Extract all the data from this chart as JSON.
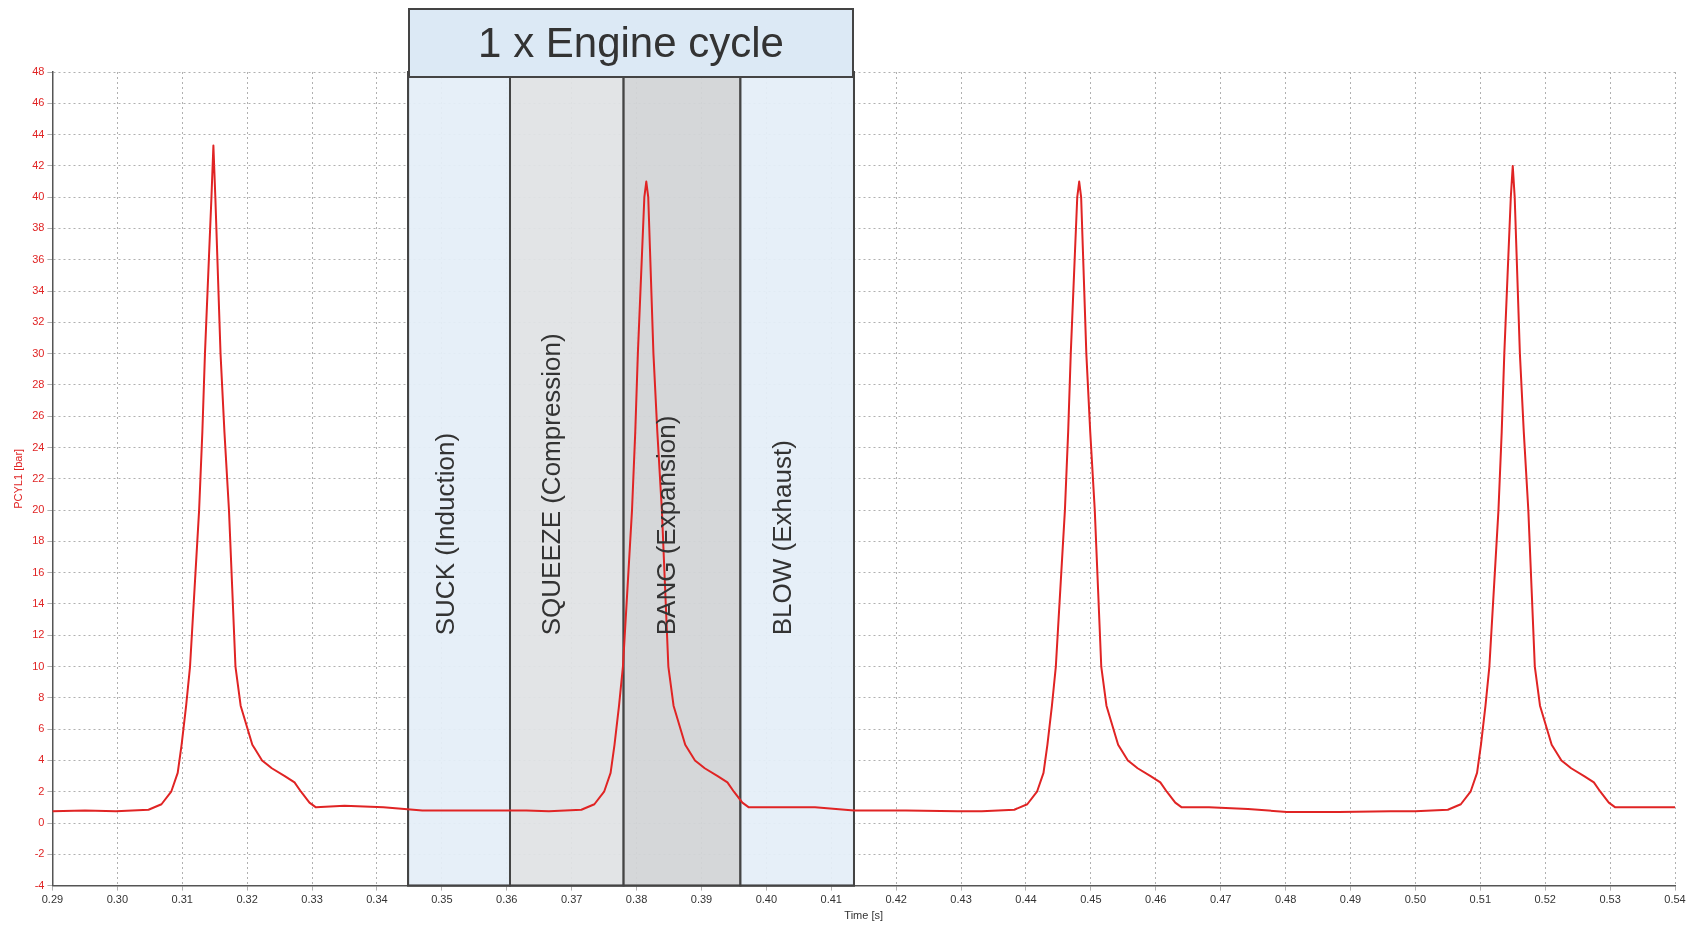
{
  "chart_data": {
    "type": "line",
    "xlabel": "Time [s]",
    "ylabel": "PCYL1 [bar]",
    "xlim": [
      0.29,
      0.54
    ],
    "xticks": [
      {
        "value": 0.29,
        "label": "0.29"
      },
      {
        "value": 0.3,
        "label": "0.30"
      },
      {
        "value": 0.31,
        "label": "0.31"
      },
      {
        "value": 0.32,
        "label": "0.32"
      },
      {
        "value": 0.33,
        "label": "0.33"
      },
      {
        "value": 0.34,
        "label": "0.34"
      },
      {
        "value": 0.35,
        "label": "0.35"
      },
      {
        "value": 0.36,
        "label": "0.36"
      },
      {
        "value": 0.37,
        "label": "0.37"
      },
      {
        "value": 0.38,
        "label": "0.38"
      },
      {
        "value": 0.39,
        "label": "0.39"
      },
      {
        "value": 0.4,
        "label": "0.40"
      },
      {
        "value": 0.41,
        "label": "0.41"
      },
      {
        "value": 0.42,
        "label": "0.42"
      },
      {
        "value": 0.43,
        "label": "0.43"
      },
      {
        "value": 0.44,
        "label": "0.44"
      },
      {
        "value": 0.45,
        "label": "0.45"
      },
      {
        "value": 0.46,
        "label": "0.46"
      },
      {
        "value": 0.47,
        "label": "0.47"
      },
      {
        "value": 0.48,
        "label": "0.48"
      },
      {
        "value": 0.49,
        "label": "0.49"
      },
      {
        "value": 0.5,
        "label": "0.50"
      },
      {
        "value": 0.51,
        "label": "0.51"
      },
      {
        "value": 0.52,
        "label": "0.52"
      },
      {
        "value": 0.53,
        "label": "0.53"
      },
      {
        "value": 0.54,
        "label": "0.54"
      }
    ],
    "ylim": [
      -4,
      48
    ],
    "yticks": [
      -4,
      -2,
      0,
      2,
      4,
      6,
      8,
      10,
      12,
      14,
      16,
      18,
      20,
      22,
      24,
      26,
      28,
      30,
      32,
      34,
      36,
      38,
      40,
      42,
      44,
      46,
      48
    ],
    "grid": true,
    "line_style": "solid",
    "marker": "none",
    "bands": [
      {
        "axis": "x",
        "from": 0.3448,
        "to": 0.4135,
        "label": "1 x Engine cycle",
        "color": "#dce9f5"
      },
      {
        "axis": "x",
        "from": 0.3448,
        "to": 0.3605,
        "label": "SUCK (Induction)",
        "color": "#e6eff8"
      },
      {
        "axis": "x",
        "from": 0.3605,
        "to": 0.378,
        "label": "SQUEEZE (Compression)",
        "color": "#e0e0e0"
      },
      {
        "axis": "x",
        "from": 0.378,
        "to": 0.396,
        "label": "BANG (Expansion)",
        "color": "#cfcfcf"
      },
      {
        "axis": "x",
        "from": 0.396,
        "to": 0.4135,
        "label": "BLOW (Exhaust)",
        "color": "#e6eff8"
      }
    ],
    "series": [
      {
        "color": "#e02424",
        "x": [
          0.29,
          0.295,
          0.2998,
          0.3048,
          0.3068,
          0.3083,
          0.3093,
          0.3099,
          0.3106,
          0.3112,
          0.3119,
          0.3126,
          0.3131,
          0.3135,
          0.314,
          0.3145,
          0.3148,
          0.3151,
          0.3159,
          0.3165,
          0.3172,
          0.3177,
          0.3182,
          0.319,
          0.3208,
          0.3223,
          0.3238,
          0.3258,
          0.3273,
          0.3283,
          0.3296,
          0.3306,
          0.335,
          0.341,
          0.347,
          0.355,
          0.363,
          0.3665,
          0.3715,
          0.3735,
          0.375,
          0.376,
          0.3766,
          0.3773,
          0.3779,
          0.3786,
          0.3793,
          0.3798,
          0.3802,
          0.3807,
          0.3812,
          0.3815,
          0.3818,
          0.3826,
          0.3832,
          0.3839,
          0.3844,
          0.3849,
          0.3857,
          0.3875,
          0.389,
          0.3905,
          0.3925,
          0.394,
          0.395,
          0.3963,
          0.3973,
          0.4015,
          0.4075,
          0.4135,
          0.4215,
          0.4295,
          0.4332,
          0.4382,
          0.4402,
          0.4417,
          0.4427,
          0.4433,
          0.444,
          0.4446,
          0.4453,
          0.446,
          0.4465,
          0.4469,
          0.4474,
          0.4479,
          0.4482,
          0.4485,
          0.4493,
          0.4499,
          0.4506,
          0.4511,
          0.4516,
          0.4524,
          0.4542,
          0.4557,
          0.4572,
          0.4592,
          0.4607,
          0.4617,
          0.463,
          0.464,
          0.4682,
          0.4742,
          0.4802,
          0.4882,
          0.4962,
          0.5,
          0.505,
          0.507,
          0.5085,
          0.5095,
          0.5101,
          0.5108,
          0.5114,
          0.5121,
          0.5128,
          0.5133,
          0.5137,
          0.5142,
          0.5147,
          0.515,
          0.5153,
          0.5161,
          0.5167,
          0.5174,
          0.5179,
          0.5184,
          0.5192,
          0.521,
          0.5225,
          0.524,
          0.526,
          0.5275,
          0.5285,
          0.5298,
          0.5308,
          0.535,
          0.54
        ],
        "values": [
          0.75,
          0.8,
          0.75,
          0.85,
          1.2,
          2.0,
          3.2,
          5,
          7.5,
          10,
          15,
          20,
          25,
          30,
          35,
          40,
          43.3,
          40,
          30,
          25,
          20,
          15,
          10,
          7.5,
          5,
          4,
          3.5,
          3.0,
          2.6,
          2.0,
          1.3,
          1.0,
          1.1,
          1.0,
          0.8,
          0.8,
          0.8,
          0.75,
          0.85,
          1.2,
          2.0,
          3.2,
          5,
          7.5,
          10,
          15,
          20,
          25,
          30,
          35,
          40,
          41,
          40,
          30,
          25,
          20,
          15,
          10,
          7.5,
          5,
          4,
          3.5,
          3.0,
          2.6,
          2.0,
          1.3,
          1.0,
          1.0,
          1.0,
          0.8,
          0.8,
          0.75,
          0.75,
          0.85,
          1.2,
          2.0,
          3.2,
          5,
          7.5,
          10,
          15,
          20,
          25,
          30,
          35,
          40,
          41,
          40,
          30,
          25,
          20,
          15,
          10,
          7.5,
          5,
          4,
          3.5,
          3.0,
          2.6,
          2.0,
          1.3,
          1.0,
          1.0,
          0.9,
          0.7,
          0.7,
          0.75,
          0.75,
          0.85,
          1.2,
          2.0,
          3.2,
          5,
          7.5,
          10,
          15,
          20,
          25,
          30,
          35,
          40,
          42,
          40,
          30,
          25,
          20,
          15,
          10,
          7.5,
          5,
          4,
          3.5,
          3.0,
          2.6,
          2.0,
          1.3,
          1.0,
          1.0,
          1.0
        ]
      }
    ]
  }
}
